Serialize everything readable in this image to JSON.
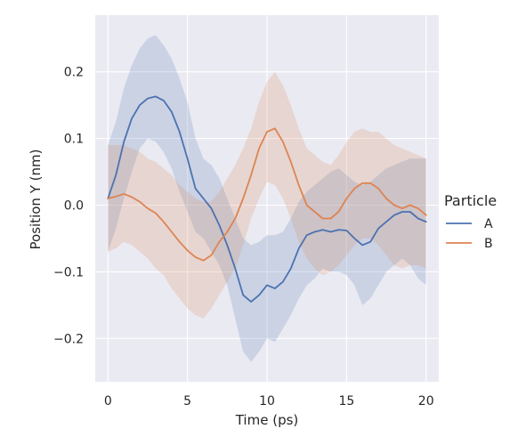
{
  "chart_data": {
    "type": "line",
    "title": "",
    "xlabel": "Time (ps)",
    "ylabel": "Position Y (nm)",
    "xlim": [
      -0.8,
      20.8
    ],
    "ylim": [
      -0.265,
      0.285
    ],
    "xticks": [
      0,
      5,
      10,
      15,
      20
    ],
    "yticks": [
      -0.2,
      -0.1,
      0.0,
      0.1,
      0.2
    ],
    "xtick_labels": [
      "0",
      "5",
      "10",
      "15",
      "20"
    ],
    "ytick_labels": [
      "−0.2",
      "−0.1",
      "0.0",
      "0.1",
      "0.2"
    ],
    "grid": true,
    "legend": {
      "title": "Particle",
      "placement": "right",
      "entries": [
        "A",
        "B"
      ]
    },
    "x": [
      0,
      0.5,
      1,
      1.5,
      2,
      2.5,
      3,
      3.5,
      4,
      4.5,
      5,
      5.5,
      6,
      6.5,
      7,
      7.5,
      8,
      8.5,
      9,
      9.5,
      10,
      10.5,
      11,
      11.5,
      12,
      12.5,
      13,
      13.5,
      14,
      14.5,
      15,
      15.5,
      16,
      16.5,
      17,
      17.5,
      18,
      18.5,
      19,
      19.5,
      20
    ],
    "series": [
      {
        "name": "A",
        "color": "#4c72b0",
        "values": [
          0.01,
          0.045,
          0.095,
          0.13,
          0.15,
          0.16,
          0.163,
          0.157,
          0.14,
          0.11,
          0.07,
          0.025,
          0.01,
          -0.005,
          -0.03,
          -0.06,
          -0.095,
          -0.135,
          -0.145,
          -0.135,
          -0.12,
          -0.125,
          -0.115,
          -0.095,
          -0.065,
          -0.045,
          -0.04,
          -0.037,
          -0.04,
          -0.037,
          -0.038,
          -0.05,
          -0.06,
          -0.055,
          -0.035,
          -0.025,
          -0.015,
          -0.01,
          -0.01,
          -0.02,
          -0.025
        ],
        "ci_low": [
          -0.07,
          -0.035,
          0.01,
          0.05,
          0.085,
          0.1,
          0.095,
          0.08,
          0.055,
          0.02,
          -0.01,
          -0.04,
          -0.05,
          -0.07,
          -0.09,
          -0.12,
          -0.17,
          -0.22,
          -0.235,
          -0.22,
          -0.2,
          -0.205,
          -0.185,
          -0.165,
          -0.14,
          -0.12,
          -0.11,
          -0.095,
          -0.1,
          -0.1,
          -0.105,
          -0.12,
          -0.15,
          -0.14,
          -0.12,
          -0.1,
          -0.09,
          -0.08,
          -0.09,
          -0.11,
          -0.12
        ],
        "ci_high": [
          0.09,
          0.125,
          0.175,
          0.21,
          0.235,
          0.25,
          0.255,
          0.24,
          0.22,
          0.19,
          0.155,
          0.1,
          0.07,
          0.06,
          0.04,
          0.01,
          -0.02,
          -0.05,
          -0.06,
          -0.055,
          -0.045,
          -0.045,
          -0.04,
          -0.02,
          0.005,
          0.02,
          0.03,
          0.04,
          0.05,
          0.055,
          0.045,
          0.035,
          0.03,
          0.035,
          0.045,
          0.055,
          0.06,
          0.065,
          0.07,
          0.07,
          0.07
        ]
      },
      {
        "name": "B",
        "color": "#dd8452",
        "values": [
          0.01,
          0.013,
          0.017,
          0.012,
          0.005,
          -0.005,
          -0.012,
          -0.025,
          -0.04,
          -0.055,
          -0.068,
          -0.078,
          -0.083,
          -0.075,
          -0.055,
          -0.04,
          -0.02,
          0.01,
          0.045,
          0.085,
          0.11,
          0.115,
          0.095,
          0.065,
          0.03,
          0.0,
          -0.01,
          -0.02,
          -0.02,
          -0.01,
          0.01,
          0.025,
          0.033,
          0.033,
          0.025,
          0.01,
          0.0,
          -0.005,
          0.0,
          -0.005,
          -0.015
        ],
        "ci_low": [
          -0.07,
          -0.065,
          -0.055,
          -0.06,
          -0.07,
          -0.08,
          -0.095,
          -0.105,
          -0.125,
          -0.14,
          -0.155,
          -0.165,
          -0.17,
          -0.155,
          -0.135,
          -0.115,
          -0.095,
          -0.06,
          -0.02,
          0.01,
          0.035,
          0.03,
          0.01,
          -0.02,
          -0.055,
          -0.08,
          -0.095,
          -0.105,
          -0.1,
          -0.09,
          -0.075,
          -0.06,
          -0.05,
          -0.05,
          -0.06,
          -0.075,
          -0.09,
          -0.095,
          -0.09,
          -0.09,
          -0.095
        ],
        "ci_high": [
          0.09,
          0.09,
          0.09,
          0.085,
          0.08,
          0.07,
          0.065,
          0.055,
          0.045,
          0.03,
          0.02,
          0.01,
          0.005,
          0.005,
          0.02,
          0.04,
          0.06,
          0.085,
          0.115,
          0.155,
          0.185,
          0.2,
          0.18,
          0.15,
          0.115,
          0.085,
          0.075,
          0.065,
          0.06,
          0.075,
          0.095,
          0.11,
          0.115,
          0.11,
          0.11,
          0.1,
          0.09,
          0.085,
          0.08,
          0.075,
          0.07
        ]
      }
    ]
  }
}
